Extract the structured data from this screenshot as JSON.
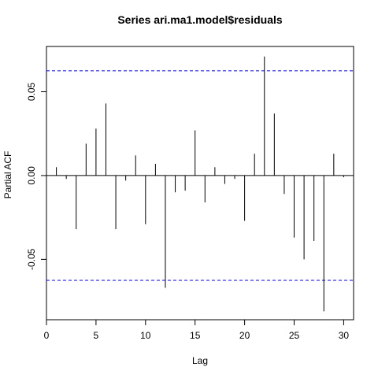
{
  "chart_data": {
    "type": "bar",
    "title": "Series  ari.ma1.model$residuals",
    "xlabel": "Lag",
    "ylabel": "Partial ACF",
    "xlim": [
      0,
      31
    ],
    "ylim": [
      -0.086,
      0.077
    ],
    "xticks": [
      0,
      5,
      10,
      15,
      20,
      25,
      30
    ],
    "xtick_labels": [
      "0",
      "5",
      "10",
      "15",
      "20",
      "25",
      "30"
    ],
    "yticks": [
      -0.05,
      0.0,
      0.05
    ],
    "ytick_labels": [
      "-0.05",
      "0.00",
      "0.05"
    ],
    "confidence_bounds": [
      0.0625,
      -0.0625
    ],
    "bound_color": "#0000ff",
    "bar_color": "#000000",
    "lags": [
      1,
      2,
      3,
      4,
      5,
      6,
      7,
      8,
      9,
      10,
      11,
      12,
      13,
      14,
      15,
      16,
      17,
      18,
      19,
      20,
      21,
      22,
      23,
      24,
      25,
      26,
      27,
      28,
      29,
      30
    ],
    "values": [
      0.005,
      -0.002,
      -0.032,
      0.019,
      0.028,
      0.043,
      -0.032,
      -0.003,
      0.012,
      -0.029,
      0.007,
      -0.067,
      -0.01,
      -0.009,
      0.027,
      -0.016,
      0.005,
      -0.005,
      -0.002,
      -0.027,
      0.013,
      0.071,
      0.037,
      -0.011,
      -0.037,
      -0.05,
      -0.039,
      -0.081,
      0.013,
      -0.001
    ],
    "grid": false,
    "legend": "none"
  }
}
